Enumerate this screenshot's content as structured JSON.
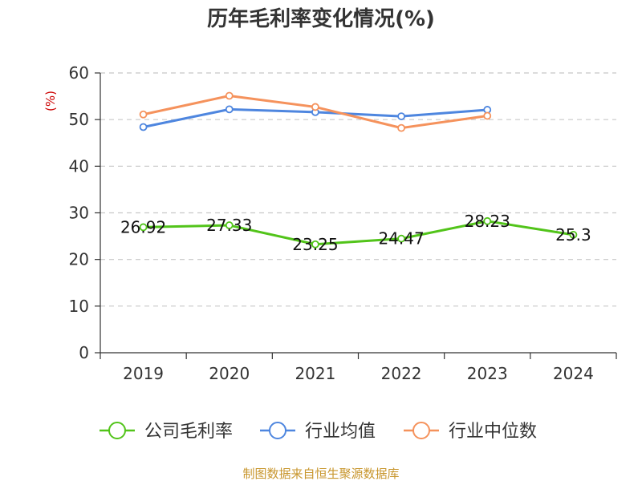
{
  "chart_data": {
    "type": "line",
    "title": "历年毛利率变化情况(%)",
    "ylabel": "(%)",
    "xlabel": "",
    "categories": [
      "2019",
      "2020",
      "2021",
      "2022",
      "2023",
      "2024"
    ],
    "ylim": [
      0,
      60
    ],
    "yticks": [
      0,
      10,
      20,
      30,
      40,
      50,
      60
    ],
    "grid": true,
    "legend_position": "bottom",
    "series": [
      {
        "name": "公司毛利率",
        "color": "#52c41a",
        "values": [
          26.92,
          27.33,
          23.25,
          24.47,
          28.23,
          25.3
        ],
        "labels": [
          "26.92",
          "27.33",
          "23.25",
          "24.47",
          "28.23",
          "25.3"
        ],
        "show_labels": true
      },
      {
        "name": "行业均值",
        "color": "#4e86df",
        "values": [
          48.4,
          52.2,
          51.6,
          50.7,
          52.1,
          null
        ],
        "show_labels": false
      },
      {
        "name": "行业中位数",
        "color": "#f5925c",
        "values": [
          51.1,
          55.1,
          52.7,
          48.2,
          50.8,
          null
        ],
        "show_labels": false
      }
    ]
  },
  "source_text": "制图数据来自恒生聚源数据库"
}
